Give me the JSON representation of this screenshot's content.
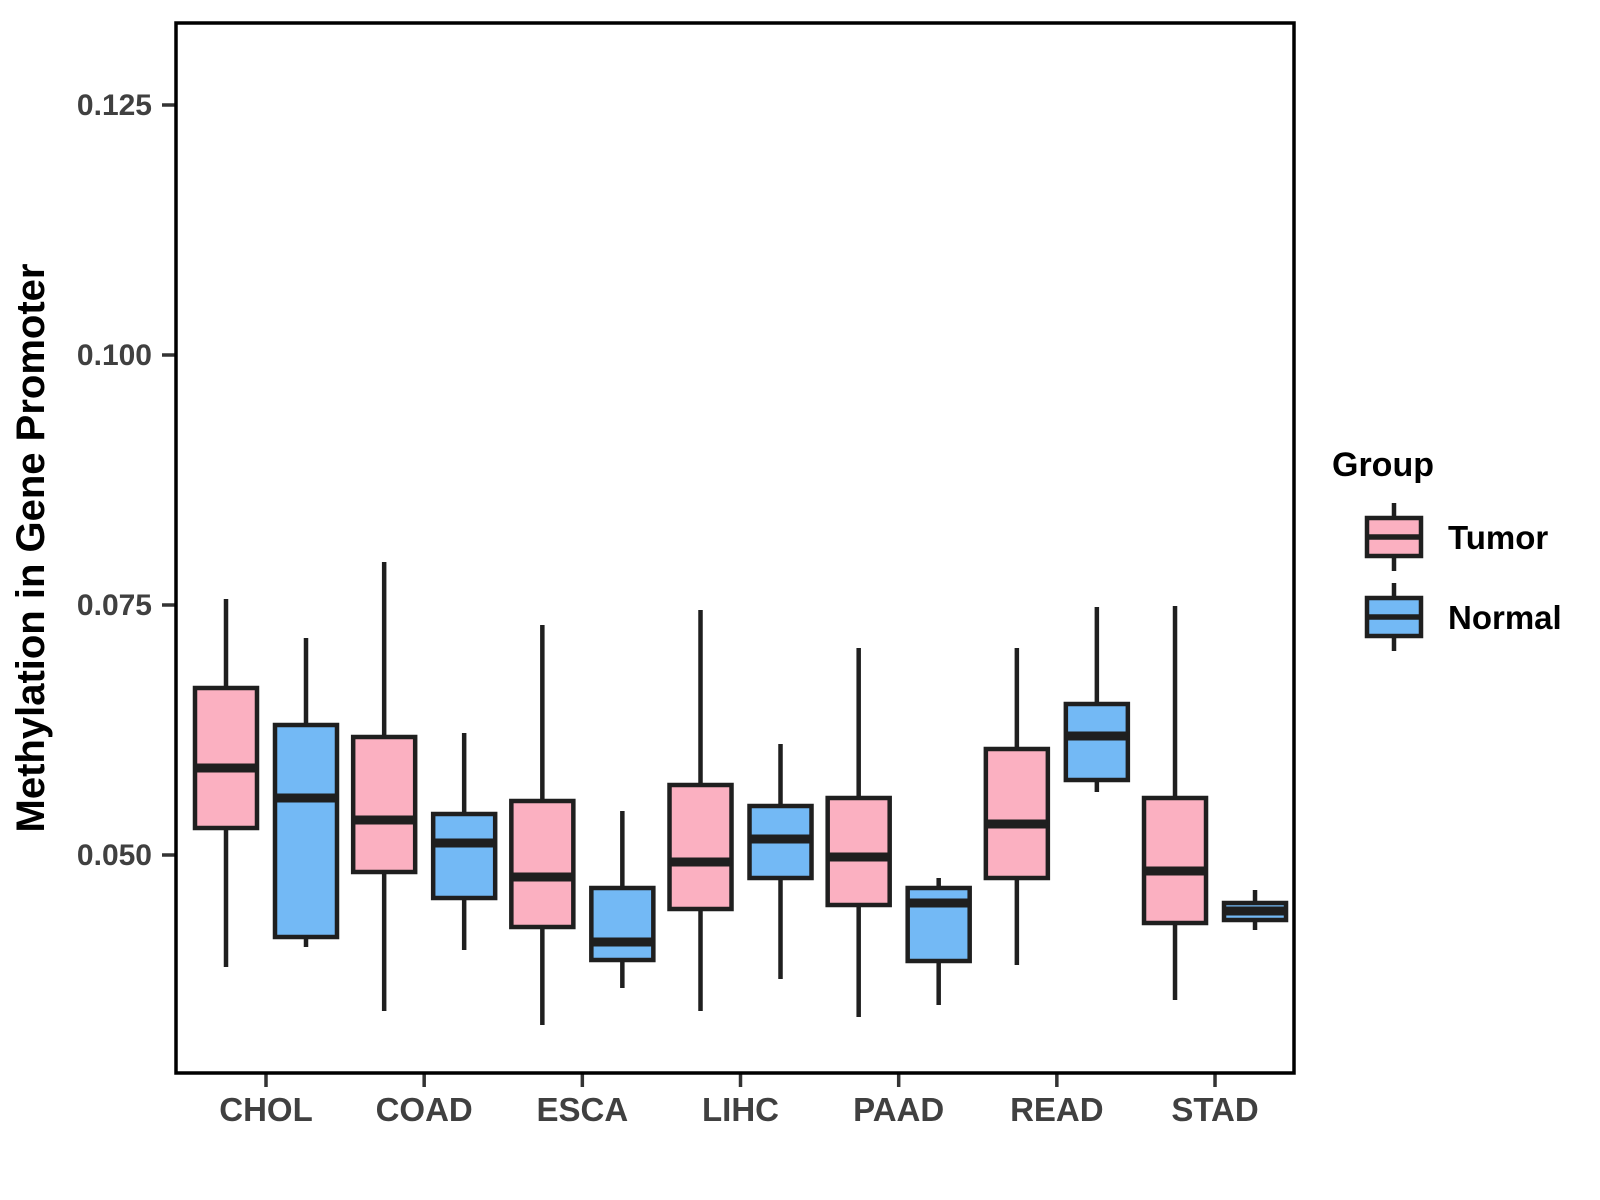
{
  "chart_data": {
    "type": "boxplot",
    "title": "",
    "xlabel": "",
    "ylabel": "Methylation in Gene Promoter",
    "categories": [
      "CHOL",
      "COAD",
      "ESCA",
      "LIHC",
      "PAAD",
      "READ",
      "STAD"
    ],
    "ylim": [
      0.0282,
      0.1332
    ],
    "yticks": [
      0.05,
      0.075,
      0.1,
      0.125
    ],
    "ytick_labels": [
      "0.050",
      "0.075",
      "0.100",
      "0.125"
    ],
    "grid": "off",
    "legend": {
      "title": "Group",
      "position": "right",
      "entries": [
        {
          "label": "Tumor",
          "color": "#FBB0C1"
        },
        {
          "label": "Normal",
          "color": "#73B9F5"
        }
      ]
    },
    "series": [
      {
        "name": "Tumor",
        "color": "#FBB0C1",
        "boxes": [
          {
            "category": "CHOL",
            "whisker_low": 0.0388,
            "q1": 0.0527,
            "median": 0.0587,
            "q3": 0.0667,
            "whisker_high": 0.0756
          },
          {
            "category": "COAD",
            "whisker_low": 0.0344,
            "q1": 0.0483,
            "median": 0.0535,
            "q3": 0.0618,
            "whisker_high": 0.0793
          },
          {
            "category": "ESCA",
            "whisker_low": 0.033,
            "q1": 0.0428,
            "median": 0.0478,
            "q3": 0.0554,
            "whisker_high": 0.073
          },
          {
            "category": "LIHC",
            "whisker_low": 0.0344,
            "q1": 0.0446,
            "median": 0.0493,
            "q3": 0.057,
            "whisker_high": 0.0745
          },
          {
            "category": "PAAD",
            "whisker_low": 0.0338,
            "q1": 0.045,
            "median": 0.0498,
            "q3": 0.0557,
            "whisker_high": 0.0707
          },
          {
            "category": "READ",
            "whisker_low": 0.039,
            "q1": 0.0477,
            "median": 0.0531,
            "q3": 0.0606,
            "whisker_high": 0.0707
          },
          {
            "category": "STAD",
            "whisker_low": 0.0355,
            "q1": 0.0432,
            "median": 0.0484,
            "q3": 0.0557,
            "whisker_high": 0.0749
          }
        ]
      },
      {
        "name": "Normal",
        "color": "#73B9F5",
        "boxes": [
          {
            "category": "CHOL",
            "whisker_low": 0.0408,
            "q1": 0.0418,
            "median": 0.0557,
            "q3": 0.063,
            "whisker_high": 0.0717
          },
          {
            "category": "COAD",
            "whisker_low": 0.0405,
            "q1": 0.0457,
            "median": 0.0512,
            "q3": 0.0541,
            "whisker_high": 0.0622
          },
          {
            "category": "ESCA",
            "whisker_low": 0.0367,
            "q1": 0.0395,
            "median": 0.0413,
            "q3": 0.0467,
            "whisker_high": 0.0544
          },
          {
            "category": "LIHC",
            "whisker_low": 0.0376,
            "q1": 0.0477,
            "median": 0.0516,
            "q3": 0.0549,
            "whisker_high": 0.0611
          },
          {
            "category": "PAAD",
            "whisker_low": 0.035,
            "q1": 0.0394,
            "median": 0.0452,
            "q3": 0.0467,
            "whisker_high": 0.0477
          },
          {
            "category": "READ",
            "whisker_low": 0.0563,
            "q1": 0.0575,
            "median": 0.0619,
            "q3": 0.0651,
            "whisker_high": 0.0748
          },
          {
            "category": "STAD",
            "whisker_low": 0.0425,
            "q1": 0.0435,
            "median": 0.0444,
            "q3": 0.0452,
            "whisker_high": 0.0465
          }
        ]
      }
    ],
    "style": {
      "box_border_color": "#1F1F1F",
      "panel_border_color": "#000000",
      "axis_text_color": "#404040",
      "background": "#FFFFFF"
    }
  }
}
